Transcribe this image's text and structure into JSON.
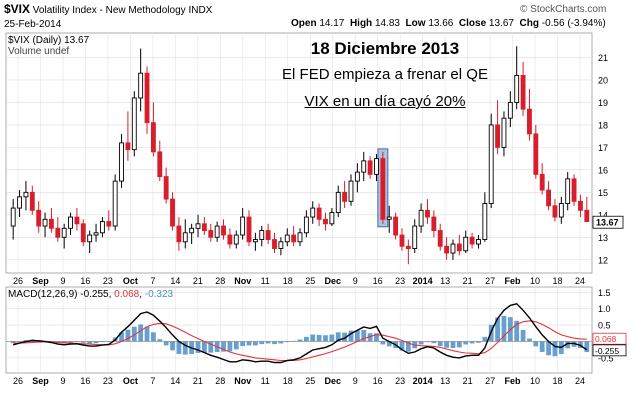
{
  "header": {
    "ticker": "$VIX",
    "name": "Volatility Index - New Methodology",
    "exchange": "INDX",
    "date": "25-Feb-2014",
    "open_label": "Open",
    "open": "14.17",
    "high_label": "High",
    "high": "14.83",
    "low_label": "Low",
    "low": "13.66",
    "close_label": "Close",
    "close": "13.67",
    "chg_label": "Chg",
    "chg": "-0.56 (-3.94%)",
    "source": "© StockCharts.com"
  },
  "annotation": {
    "line1": "18 Diciembre 2013",
    "line2": "El FED empieza a frenar el QE",
    "line3": "VIX en un día cayó 20%"
  },
  "chart_data": [
    {
      "type": "candlestick",
      "legend": [
        "$VIX (Daily) 13.67",
        "Volume undef"
      ],
      "last_value": "13.67",
      "ylim": [
        11.5,
        22
      ],
      "y_ticks": [
        12,
        13,
        14,
        15,
        16,
        17,
        18,
        19,
        20,
        21
      ],
      "x_tick_labels": [
        "26",
        "Sep",
        "9",
        "16",
        "23",
        "Oct",
        "7",
        "14",
        "21",
        "28",
        "Nov",
        "11",
        "18",
        "25",
        "Dec",
        "9",
        "16",
        "23",
        "2014",
        "13",
        "21",
        "27",
        "Feb",
        "10",
        "18",
        "24"
      ],
      "bold_x_labels": [
        "Sep",
        "Oct",
        "Nov",
        "Dec",
        "2014",
        "Feb"
      ],
      "highlight": {
        "label": "18-Dec-2013",
        "from_close": 16.5,
        "to_close": 13.8
      },
      "colors": {
        "up": "#000000",
        "down": "#d81e2c",
        "highlight": "#6f8fc6"
      },
      "series": [
        {
          "o": 13.5,
          "h": 14.7,
          "l": 12.9,
          "c": 14.3
        },
        {
          "o": 14.3,
          "h": 15.1,
          "l": 13.9,
          "c": 14.8
        },
        {
          "o": 14.8,
          "h": 15.5,
          "l": 14.2,
          "c": 15.0
        },
        {
          "o": 15.0,
          "h": 15.3,
          "l": 14.0,
          "c": 14.2
        },
        {
          "o": 14.2,
          "h": 14.6,
          "l": 13.2,
          "c": 13.5
        },
        {
          "o": 13.5,
          "h": 14.1,
          "l": 13.0,
          "c": 13.8
        },
        {
          "o": 13.8,
          "h": 14.3,
          "l": 13.2,
          "c": 13.4
        },
        {
          "o": 13.4,
          "h": 13.9,
          "l": 12.8,
          "c": 13.0
        },
        {
          "o": 13.0,
          "h": 13.6,
          "l": 12.5,
          "c": 13.4
        },
        {
          "o": 13.4,
          "h": 14.1,
          "l": 13.1,
          "c": 13.9
        },
        {
          "o": 13.9,
          "h": 14.3,
          "l": 13.3,
          "c": 13.6
        },
        {
          "o": 13.6,
          "h": 13.8,
          "l": 12.6,
          "c": 12.8
        },
        {
          "o": 12.8,
          "h": 13.3,
          "l": 12.3,
          "c": 13.1
        },
        {
          "o": 13.1,
          "h": 13.6,
          "l": 12.8,
          "c": 13.2
        },
        {
          "o": 13.2,
          "h": 13.9,
          "l": 13.0,
          "c": 13.7
        },
        {
          "o": 13.7,
          "h": 14.2,
          "l": 13.3,
          "c": 13.5
        },
        {
          "o": 13.5,
          "h": 15.8,
          "l": 13.3,
          "c": 15.5
        },
        {
          "o": 15.5,
          "h": 17.6,
          "l": 15.2,
          "c": 17.2
        },
        {
          "o": 17.2,
          "h": 18.6,
          "l": 16.4,
          "c": 16.9
        },
        {
          "o": 16.9,
          "h": 19.5,
          "l": 16.6,
          "c": 19.2
        },
        {
          "o": 19.2,
          "h": 21.4,
          "l": 18.6,
          "c": 20.3
        },
        {
          "o": 20.3,
          "h": 20.6,
          "l": 17.6,
          "c": 18.1
        },
        {
          "o": 18.1,
          "h": 19.0,
          "l": 16.6,
          "c": 16.8
        },
        {
          "o": 16.8,
          "h": 17.3,
          "l": 15.5,
          "c": 15.7
        },
        {
          "o": 15.7,
          "h": 16.1,
          "l": 14.5,
          "c": 14.7
        },
        {
          "o": 14.7,
          "h": 15.0,
          "l": 13.3,
          "c": 13.5
        },
        {
          "o": 13.5,
          "h": 13.9,
          "l": 12.4,
          "c": 12.8
        },
        {
          "o": 12.8,
          "h": 13.8,
          "l": 12.5,
          "c": 13.2
        },
        {
          "o": 13.2,
          "h": 13.6,
          "l": 12.7,
          "c": 13.4
        },
        {
          "o": 13.4,
          "h": 14.0,
          "l": 13.0,
          "c": 13.6
        },
        {
          "o": 13.6,
          "h": 13.9,
          "l": 13.1,
          "c": 13.3
        },
        {
          "o": 13.3,
          "h": 13.6,
          "l": 12.8,
          "c": 13.0
        },
        {
          "o": 13.0,
          "h": 13.7,
          "l": 12.8,
          "c": 13.5
        },
        {
          "o": 13.5,
          "h": 13.8,
          "l": 12.9,
          "c": 13.1
        },
        {
          "o": 13.1,
          "h": 13.4,
          "l": 12.5,
          "c": 12.7
        },
        {
          "o": 12.7,
          "h": 13.3,
          "l": 12.5,
          "c": 13.1
        },
        {
          "o": 13.1,
          "h": 14.3,
          "l": 12.9,
          "c": 13.9
        },
        {
          "o": 13.9,
          "h": 14.2,
          "l": 12.6,
          "c": 12.8
        },
        {
          "o": 12.8,
          "h": 13.2,
          "l": 12.4,
          "c": 12.9
        },
        {
          "o": 12.9,
          "h": 13.5,
          "l": 12.6,
          "c": 13.3
        },
        {
          "o": 13.3,
          "h": 13.6,
          "l": 12.7,
          "c": 12.9
        },
        {
          "o": 12.9,
          "h": 13.2,
          "l": 12.3,
          "c": 12.5
        },
        {
          "o": 12.5,
          "h": 13.0,
          "l": 12.2,
          "c": 12.8
        },
        {
          "o": 12.8,
          "h": 13.4,
          "l": 12.6,
          "c": 13.1
        },
        {
          "o": 13.1,
          "h": 13.5,
          "l": 12.6,
          "c": 12.8
        },
        {
          "o": 12.8,
          "h": 13.4,
          "l": 12.6,
          "c": 13.2
        },
        {
          "o": 13.2,
          "h": 14.2,
          "l": 13.0,
          "c": 13.9
        },
        {
          "o": 13.9,
          "h": 14.6,
          "l": 13.6,
          "c": 14.3
        },
        {
          "o": 14.3,
          "h": 14.5,
          "l": 13.5,
          "c": 13.8
        },
        {
          "o": 13.8,
          "h": 14.1,
          "l": 13.3,
          "c": 13.6
        },
        {
          "o": 13.6,
          "h": 14.3,
          "l": 13.5,
          "c": 14.1
        },
        {
          "o": 14.1,
          "h": 15.3,
          "l": 13.9,
          "c": 15.0
        },
        {
          "o": 15.0,
          "h": 15.5,
          "l": 14.3,
          "c": 14.6
        },
        {
          "o": 14.6,
          "h": 15.8,
          "l": 14.4,
          "c": 15.5
        },
        {
          "o": 15.5,
          "h": 16.3,
          "l": 15.0,
          "c": 15.9
        },
        {
          "o": 15.9,
          "h": 16.8,
          "l": 15.5,
          "c": 16.4
        },
        {
          "o": 16.4,
          "h": 16.6,
          "l": 15.6,
          "c": 15.8
        },
        {
          "o": 15.8,
          "h": 16.7,
          "l": 15.5,
          "c": 16.5
        },
        {
          "o": 16.5,
          "h": 16.8,
          "l": 13.6,
          "c": 13.8
        },
        {
          "o": 13.8,
          "h": 14.4,
          "l": 13.2,
          "c": 13.9
        },
        {
          "o": 13.9,
          "h": 14.1,
          "l": 12.9,
          "c": 13.1
        },
        {
          "o": 13.1,
          "h": 13.4,
          "l": 12.4,
          "c": 12.6
        },
        {
          "o": 12.6,
          "h": 12.9,
          "l": 11.8,
          "c": 12.5
        },
        {
          "o": 12.5,
          "h": 13.8,
          "l": 12.3,
          "c": 13.5
        },
        {
          "o": 13.5,
          "h": 14.5,
          "l": 13.2,
          "c": 14.2
        },
        {
          "o": 14.2,
          "h": 14.7,
          "l": 13.6,
          "c": 13.9
        },
        {
          "o": 13.9,
          "h": 14.2,
          "l": 13.0,
          "c": 13.3
        },
        {
          "o": 13.3,
          "h": 13.6,
          "l": 12.4,
          "c": 12.6
        },
        {
          "o": 12.6,
          "h": 13.0,
          "l": 12.0,
          "c": 12.3
        },
        {
          "o": 12.3,
          "h": 12.9,
          "l": 12.0,
          "c": 12.7
        },
        {
          "o": 12.7,
          "h": 13.1,
          "l": 12.2,
          "c": 12.4
        },
        {
          "o": 12.4,
          "h": 13.3,
          "l": 12.3,
          "c": 13.0
        },
        {
          "o": 13.0,
          "h": 13.2,
          "l": 12.5,
          "c": 12.7
        },
        {
          "o": 12.7,
          "h": 13.1,
          "l": 12.5,
          "c": 12.9
        },
        {
          "o": 12.9,
          "h": 15.0,
          "l": 12.8,
          "c": 14.5
        },
        {
          "o": 14.5,
          "h": 18.5,
          "l": 14.3,
          "c": 18.0
        },
        {
          "o": 18.0,
          "h": 19.1,
          "l": 16.7,
          "c": 17.0
        },
        {
          "o": 17.0,
          "h": 18.6,
          "l": 16.6,
          "c": 18.3
        },
        {
          "o": 18.3,
          "h": 19.5,
          "l": 17.9,
          "c": 19.0
        },
        {
          "o": 19.0,
          "h": 21.5,
          "l": 18.7,
          "c": 20.2
        },
        {
          "o": 20.2,
          "h": 20.8,
          "l": 18.4,
          "c": 18.7
        },
        {
          "o": 18.7,
          "h": 19.6,
          "l": 17.3,
          "c": 17.6
        },
        {
          "o": 17.6,
          "h": 18.0,
          "l": 15.6,
          "c": 15.8
        },
        {
          "o": 15.8,
          "h": 16.3,
          "l": 14.9,
          "c": 15.1
        },
        {
          "o": 15.1,
          "h": 15.5,
          "l": 14.2,
          "c": 14.4
        },
        {
          "o": 14.4,
          "h": 14.7,
          "l": 13.7,
          "c": 13.9
        },
        {
          "o": 13.9,
          "h": 14.8,
          "l": 13.6,
          "c": 14.5
        },
        {
          "o": 14.5,
          "h": 15.9,
          "l": 14.2,
          "c": 15.6
        },
        {
          "o": 15.6,
          "h": 15.8,
          "l": 14.4,
          "c": 14.6
        },
        {
          "o": 14.6,
          "h": 14.9,
          "l": 13.9,
          "c": 14.2
        },
        {
          "o": 14.2,
          "h": 14.8,
          "l": 13.7,
          "c": 13.7
        }
      ]
    },
    {
      "type": "macd",
      "legend": {
        "name": "MACD(12,26,9)",
        "macd": "-0.255",
        "signal": "0.068",
        "hist": "-0.323"
      },
      "ylim": [
        -0.9,
        1.6
      ],
      "y_ticks": [
        -0.5,
        0.0,
        0.5,
        1.0,
        1.5
      ],
      "labels": {
        "signal": "0.068",
        "macd": "-0.255"
      },
      "colors": {
        "macd": "#000000",
        "signal": "#e0343a",
        "hist": "#4e8ec9"
      },
      "macd": [
        -0.1,
        -0.05,
        0.0,
        0.03,
        0.02,
        0.0,
        -0.03,
        -0.08,
        -0.1,
        -0.08,
        -0.07,
        -0.11,
        -0.14,
        -0.14,
        -0.11,
        -0.09,
        0.05,
        0.28,
        0.45,
        0.65,
        0.85,
        0.9,
        0.8,
        0.62,
        0.42,
        0.2,
        0.0,
        -0.12,
        -0.2,
        -0.26,
        -0.34,
        -0.42,
        -0.48,
        -0.55,
        -0.62,
        -0.62,
        -0.56,
        -0.58,
        -0.62,
        -0.6,
        -0.6,
        -0.64,
        -0.64,
        -0.58,
        -0.56,
        -0.5,
        -0.38,
        -0.26,
        -0.22,
        -0.18,
        -0.1,
        0.04,
        0.1,
        0.24,
        0.34,
        0.44,
        0.4,
        0.46,
        0.1,
        0.0,
        -0.1,
        -0.25,
        -0.36,
        -0.32,
        -0.22,
        -0.16,
        -0.2,
        -0.32,
        -0.42,
        -0.48,
        -0.5,
        -0.44,
        -0.42,
        -0.42,
        -0.2,
        0.3,
        0.7,
        0.95,
        1.1,
        1.15,
        0.95,
        0.72,
        0.45,
        0.2,
        0.0,
        -0.15,
        -0.18,
        -0.06,
        -0.06,
        -0.12,
        -0.255
      ],
      "signal": [
        -0.05,
        -0.05,
        -0.04,
        -0.03,
        -0.02,
        -0.01,
        -0.01,
        -0.03,
        -0.04,
        -0.05,
        -0.06,
        -0.07,
        -0.08,
        -0.09,
        -0.1,
        -0.1,
        -0.07,
        0.0,
        0.09,
        0.2,
        0.33,
        0.45,
        0.52,
        0.55,
        0.54,
        0.47,
        0.38,
        0.28,
        0.18,
        0.09,
        0.0,
        -0.08,
        -0.16,
        -0.24,
        -0.32,
        -0.38,
        -0.42,
        -0.46,
        -0.5,
        -0.52,
        -0.54,
        -0.56,
        -0.58,
        -0.58,
        -0.58,
        -0.56,
        -0.52,
        -0.47,
        -0.42,
        -0.37,
        -0.31,
        -0.24,
        -0.17,
        -0.09,
        0.0,
        0.09,
        0.15,
        0.21,
        0.19,
        0.15,
        0.1,
        0.03,
        -0.05,
        -0.11,
        -0.13,
        -0.14,
        -0.15,
        -0.18,
        -0.23,
        -0.28,
        -0.32,
        -0.35,
        -0.36,
        -0.38,
        -0.34,
        -0.21,
        -0.03,
        0.17,
        0.36,
        0.52,
        0.6,
        0.63,
        0.6,
        0.52,
        0.42,
        0.3,
        0.2,
        0.15,
        0.1,
        0.08,
        0.068
      ]
    }
  ]
}
